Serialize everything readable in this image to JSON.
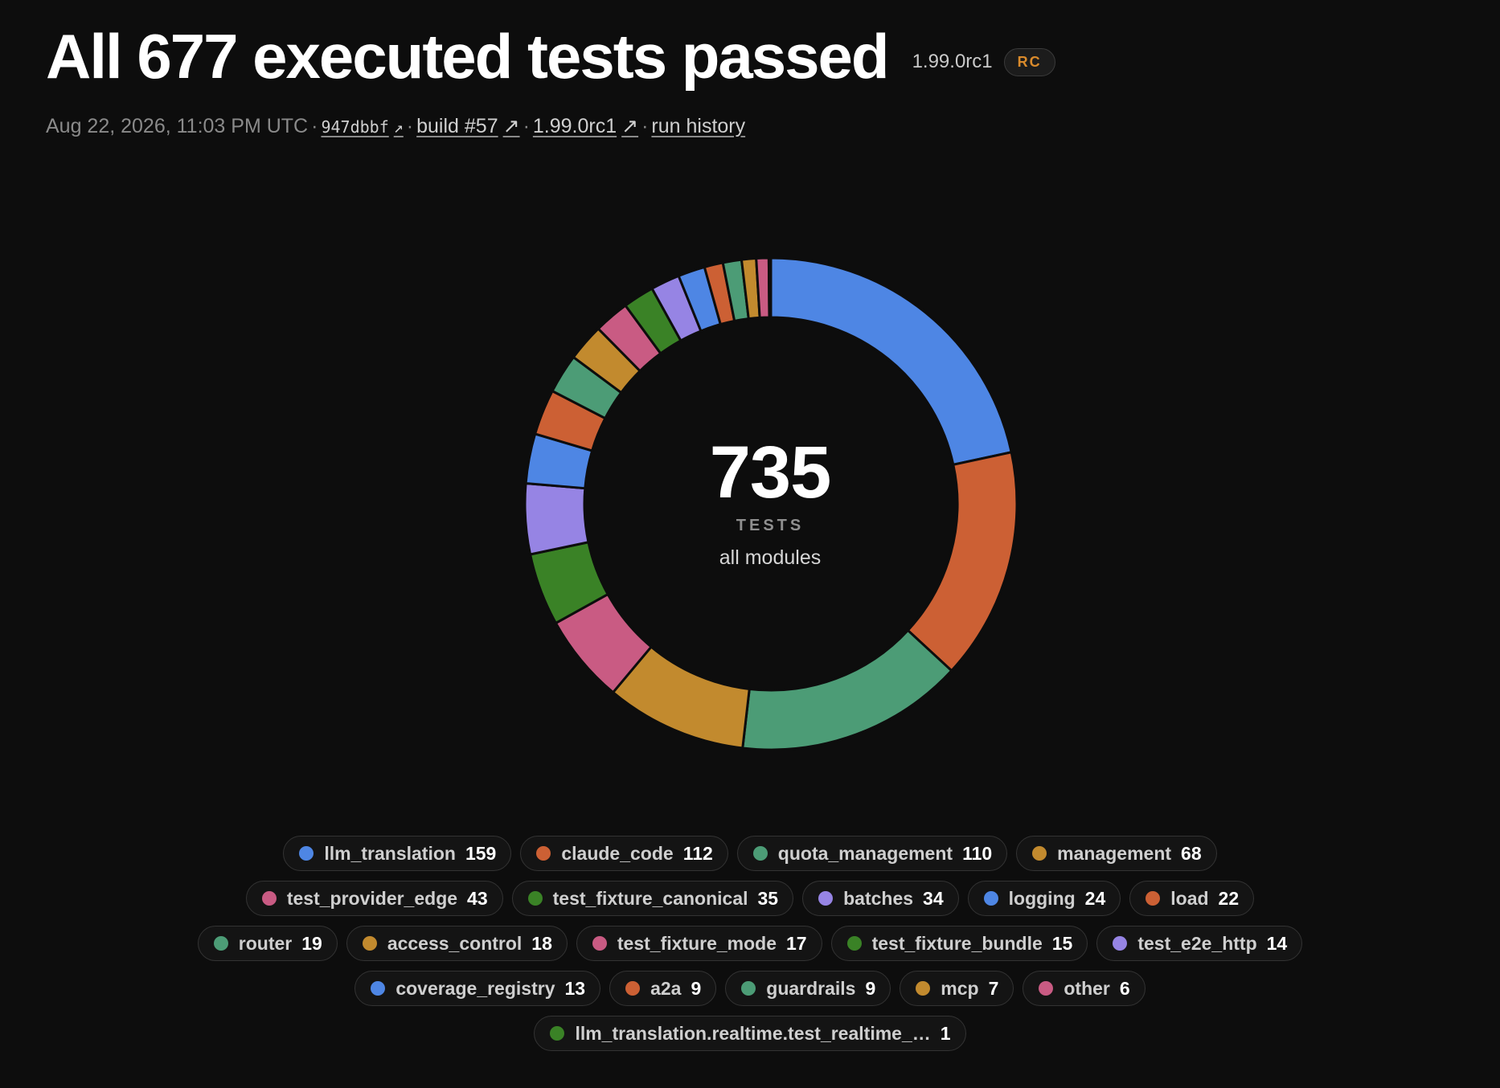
{
  "header": {
    "title": "All 677 executed tests passed",
    "version": "1.99.0rc1",
    "badge": "RC"
  },
  "meta": {
    "timestamp": "Aug 22, 2026, 11:03 PM UTC",
    "commit": "947dbbf",
    "build": "build #57",
    "release": "1.99.0rc1",
    "history": "run history",
    "separator": "·",
    "arrow": "↗"
  },
  "center": {
    "total": "735",
    "unit": "TESTS",
    "subtitle": "all modules"
  },
  "chart_data": {
    "type": "pie",
    "style": "donut",
    "total": 735,
    "center_label": "735",
    "segments": [
      {
        "name": "llm_translation",
        "value": 159,
        "color": "#4e86e4"
      },
      {
        "name": "claude_code",
        "value": 112,
        "color": "#cc6034"
      },
      {
        "name": "quota_management",
        "value": 110,
        "color": "#4c9c76"
      },
      {
        "name": "management",
        "value": 68,
        "color": "#c28a2e"
      },
      {
        "name": "test_provider_edge",
        "value": 43,
        "color": "#c95b83"
      },
      {
        "name": "test_fixture_canonical",
        "value": 35,
        "color": "#3a8226"
      },
      {
        "name": "batches",
        "value": 34,
        "color": "#9684e4"
      },
      {
        "name": "logging",
        "value": 24,
        "color": "#4e86e4"
      },
      {
        "name": "load",
        "value": 22,
        "color": "#cc6034"
      },
      {
        "name": "router",
        "value": 19,
        "color": "#4c9c76"
      },
      {
        "name": "access_control",
        "value": 18,
        "color": "#c28a2e"
      },
      {
        "name": "test_fixture_mode",
        "value": 17,
        "color": "#c95b83"
      },
      {
        "name": "test_fixture_bundle",
        "value": 15,
        "color": "#3a8226"
      },
      {
        "name": "test_e2e_http",
        "value": 14,
        "color": "#9684e4"
      },
      {
        "name": "coverage_registry",
        "value": 13,
        "color": "#4e86e4"
      },
      {
        "name": "a2a",
        "value": 9,
        "color": "#cc6034"
      },
      {
        "name": "guardrails",
        "value": 9,
        "color": "#4c9c76"
      },
      {
        "name": "mcp",
        "value": 7,
        "color": "#c28a2e"
      },
      {
        "name": "other",
        "value": 6,
        "color": "#c95b83"
      },
      {
        "name": "llm_translation.realtime.test_realtime_…",
        "value": 1,
        "color": "#3a8226"
      }
    ],
    "legend_rows": [
      [
        0,
        1,
        2,
        3
      ],
      [
        4,
        5,
        6,
        7,
        8
      ],
      [
        9,
        10,
        11,
        12,
        13
      ],
      [
        14,
        15,
        16,
        17,
        18
      ],
      [
        19
      ]
    ]
  }
}
